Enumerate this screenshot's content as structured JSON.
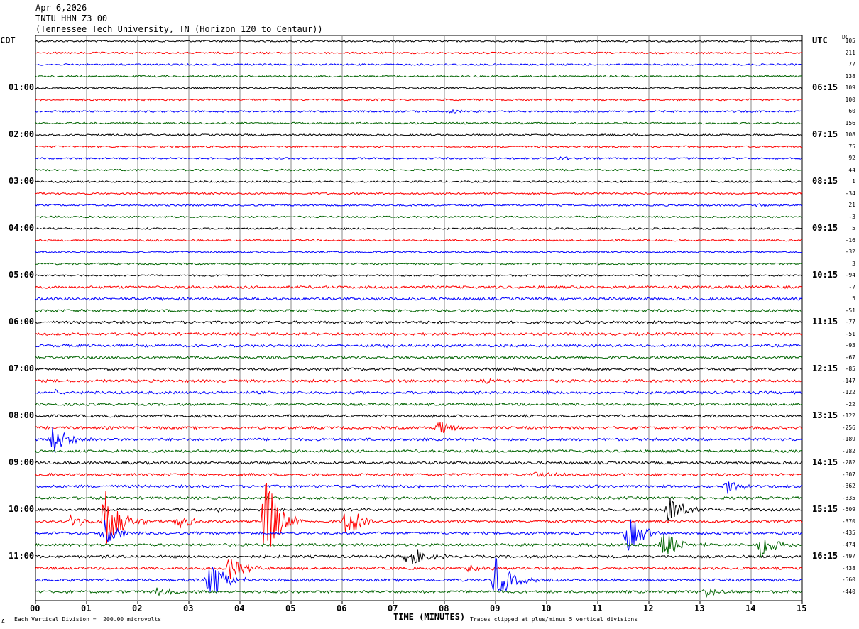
{
  "header": {
    "date": "Apr 6,2026",
    "station": "TNTU HHN Z3 00",
    "location": "(Tennessee Tech University, TN (Horizon 120 to Centaur))"
  },
  "left_tz": "CDT",
  "right_tz": "UTC",
  "dc_label": "DC",
  "footer": {
    "scale": "Each Vertical Division =  200.00 microvolts",
    "xlabel": "TIME (MINUTES)",
    "clip": "Traces clipped at plus/minus 5 vertical divisions",
    "corner": "A"
  },
  "chart_data": {
    "type": "line",
    "title": "TNTU HHN Z3 00 helicorder",
    "xlabel": "TIME (MINUTES)",
    "xlim": [
      0,
      15
    ],
    "x_ticks": [
      "00",
      "01",
      "02",
      "03",
      "04",
      "05",
      "06",
      "07",
      "08",
      "09",
      "10",
      "11",
      "12",
      "13",
      "14",
      "15"
    ],
    "colors": [
      "#000000",
      "#ff0000",
      "#0000ff",
      "#006400"
    ],
    "left_labels": [
      "01:00",
      "02:00",
      "03:00",
      "04:00",
      "05:00",
      "06:00",
      "07:00",
      "08:00",
      "09:00",
      "10:00",
      "11:00"
    ],
    "right_labels": [
      "06:15",
      "07:15",
      "08:15",
      "09:15",
      "10:15",
      "11:15",
      "12:15",
      "13:15",
      "14:15",
      "15:15",
      "16:15"
    ],
    "dc_offsets": [
      "105",
      "211",
      "77",
      "138",
      "109",
      "100",
      "60",
      "156",
      "108",
      "75",
      "92",
      "44",
      "1",
      "-34",
      "21",
      "-3",
      "5",
      "-16",
      "-32",
      "3",
      "-94",
      "-7",
      "5",
      "-51",
      "-77",
      "-51",
      "-93",
      "-67",
      "-85",
      "-147",
      "-122",
      "-22",
      "-122",
      "-256",
      "-189",
      "-282",
      "-282",
      "-307",
      "-362",
      "-335",
      "-509",
      "-370",
      "-435",
      "-474",
      "-497",
      "-438",
      "-560",
      "-440"
    ],
    "events": [
      {
        "trace": 6,
        "minute": 8.1,
        "amp": 0.4
      },
      {
        "trace": 10,
        "minute": 10.2,
        "amp": 0.4
      },
      {
        "trace": 14,
        "minute": 14.1,
        "amp": 0.4
      },
      {
        "trace": 26,
        "minute": 6.6,
        "amp": 0.3
      },
      {
        "trace": 28,
        "minute": 9.8,
        "amp": 0.3
      },
      {
        "trace": 29,
        "minute": 8.8,
        "amp": 0.5
      },
      {
        "trace": 30,
        "minute": 0.4,
        "amp": 0.4
      },
      {
        "trace": 33,
        "minute": 7.9,
        "amp": 1.6
      },
      {
        "trace": 34,
        "minute": 0.35,
        "amp": 2.8
      },
      {
        "trace": 37,
        "minute": 9.8,
        "amp": 0.5
      },
      {
        "trace": 38,
        "minute": 13.5,
        "amp": 1.4
      },
      {
        "trace": 38,
        "minute": 7.4,
        "amp": 0.5
      },
      {
        "trace": 40,
        "minute": 12.4,
        "amp": 2.5
      },
      {
        "trace": 40,
        "minute": 3.5,
        "amp": 0.5
      },
      {
        "trace": 41,
        "minute": 1.35,
        "amp": 7
      },
      {
        "trace": 41,
        "minute": 4.5,
        "amp": 8
      },
      {
        "trace": 41,
        "minute": 6.1,
        "amp": 3
      },
      {
        "trace": 41,
        "minute": 2.8,
        "amp": 1.4
      },
      {
        "trace": 41,
        "minute": 0.7,
        "amp": 1.4
      },
      {
        "trace": 42,
        "minute": 1.35,
        "amp": 2.2
      },
      {
        "trace": 42,
        "minute": 11.6,
        "amp": 3.5
      },
      {
        "trace": 43,
        "minute": 12.3,
        "amp": 3
      },
      {
        "trace": 43,
        "minute": 14.2,
        "amp": 2.3
      },
      {
        "trace": 44,
        "minute": 7.3,
        "amp": 2.2
      },
      {
        "trace": 45,
        "minute": 3.8,
        "amp": 2.2
      },
      {
        "trace": 45,
        "minute": 8.5,
        "amp": 0.7
      },
      {
        "trace": 46,
        "minute": 3.4,
        "amp": 4.5
      },
      {
        "trace": 46,
        "minute": 9.0,
        "amp": 4
      },
      {
        "trace": 47,
        "minute": 13.1,
        "amp": 1
      },
      {
        "trace": 47,
        "minute": 2.4,
        "amp": 0.8
      }
    ]
  }
}
